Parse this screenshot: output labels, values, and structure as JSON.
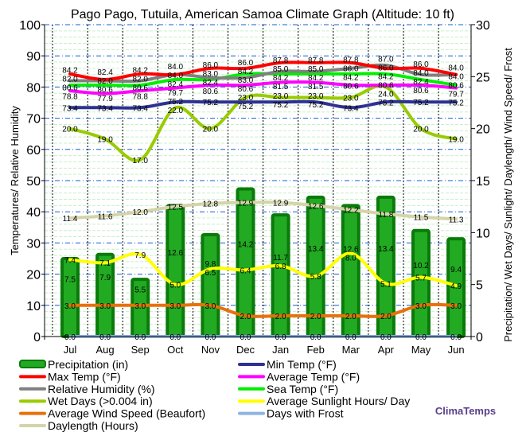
{
  "chart_data": {
    "type": "bar",
    "title": "Pago Pago, Tutuila, American Samoa Climate Graph (Altitude: 10 ft)",
    "ylabel": "Temperatures/ Relative Humidity",
    "y2label": "Precipitation/ Wet Days/ Sunlight/ Daylength/ Wind Speed/ Frost",
    "ylim": [
      0,
      100
    ],
    "y2lim": [
      0,
      30
    ],
    "yticks": [
      0,
      10,
      20,
      30,
      40,
      50,
      60,
      70,
      80,
      90,
      100
    ],
    "y2ticks": [
      0,
      5,
      10,
      15,
      20,
      25,
      30
    ],
    "grid": true,
    "legend_placement": "bottom",
    "categories": [
      "Jul",
      "Aug",
      "Sep",
      "Oct",
      "Nov",
      "Dec",
      "Jan",
      "Feb",
      "Mar",
      "Apr",
      "May",
      "Jun"
    ],
    "series": [
      {
        "name": "Precipitation (in)",
        "kind": "bar",
        "axis": "right",
        "color": "#1a9a1a",
        "values": [
          7.5,
          7.9,
          5.5,
          12.6,
          9.8,
          14.2,
          11.7,
          13.4,
          12.6,
          13.4,
          10.2,
          9.4
        ]
      },
      {
        "name": "Max Temp (°F)",
        "kind": "line",
        "axis": "left",
        "color": "#ff0000",
        "values": [
          84.2,
          82.4,
          84.2,
          84.0,
          86.0,
          86.0,
          87.8,
          87.8,
          87.8,
          86.0,
          86.0,
          84.0
        ]
      },
      {
        "name": "Relative Humidity (%)",
        "kind": "line",
        "axis": "left",
        "color": "#808080",
        "values": [
          82.0,
          82.0,
          82.0,
          84.0,
          83.0,
          83.0,
          85.0,
          85.0,
          86.0,
          87.0,
          84.0,
          84.0
        ]
      },
      {
        "name": "Wet Days (>0.004 in)",
        "kind": "line",
        "axis": "right",
        "color": "#99cc00",
        "values": [
          20.0,
          19.0,
          17.0,
          22.0,
          20.0,
          23.0,
          23.0,
          23.0,
          23.0,
          24.0,
          20.0,
          19.0
        ]
      },
      {
        "name": "Average Wind Speed (Beaufort)",
        "kind": "line",
        "axis": "right",
        "color": "#e8700a",
        "values": [
          3.0,
          3.0,
          3.0,
          3.0,
          3.0,
          2.0,
          2.0,
          2.0,
          2.0,
          2.0,
          3.0,
          3.0
        ]
      },
      {
        "name": "Daylength (Hours)",
        "kind": "line",
        "axis": "right",
        "color": "#d4d4a8",
        "values": [
          11.4,
          11.6,
          12.0,
          12.5,
          12.8,
          12.9,
          12.9,
          12.6,
          12.2,
          11.8,
          11.5,
          11.3
        ]
      },
      {
        "name": "Min Temp (°F)",
        "kind": "line",
        "axis": "left",
        "color": "#2e3192",
        "values": [
          73.4,
          73.4,
          73.4,
          75.2,
          75.2,
          75.2,
          75.2,
          75.2,
          73.4,
          75.2,
          75.2,
          75.2
        ]
      },
      {
        "name": "Average Temp (°F)",
        "kind": "line",
        "axis": "left",
        "color": "#ff00ff",
        "values": [
          78.8,
          77.9,
          78.8,
          79.7,
          80.6,
          80.6,
          81.5,
          81.5,
          80.6,
          80.6,
          80.6,
          79.7
        ]
      },
      {
        "name": "Sea Temp (°F)",
        "kind": "line",
        "axis": "left",
        "color": "#00ee00",
        "values": [
          80.6,
          80.6,
          80.6,
          82.4,
          82.4,
          84.2,
          84.2,
          84.2,
          84.2,
          84.2,
          82.4,
          80.6
        ]
      },
      {
        "name": "Average Sunlight Hours/ Day",
        "kind": "line",
        "axis": "right",
        "color": "#ffff00",
        "values": [
          7.4,
          7.1,
          7.9,
          5.0,
          6.5,
          6.4,
          6.8,
          5.8,
          8.0,
          5.1,
          5.7,
          4.9
        ]
      },
      {
        "name": "Days with Frost",
        "kind": "line",
        "axis": "right",
        "color": "#8fb4e0",
        "values": [
          0,
          0,
          0,
          0,
          0,
          0,
          0,
          0,
          0,
          0,
          0,
          0
        ]
      }
    ]
  },
  "brand": "ClimaTemps"
}
